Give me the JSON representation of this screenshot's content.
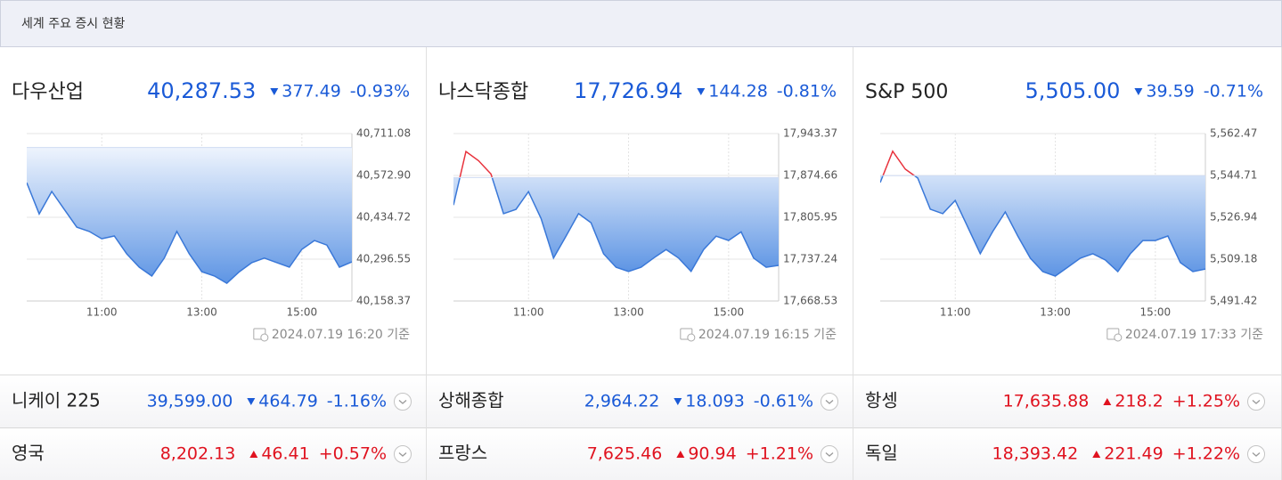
{
  "header": {
    "title": "세계 주요 증시 현황"
  },
  "colors": {
    "up": "#e0121f",
    "down": "#1a5ad7"
  },
  "panels": [
    {
      "name": "다우산업",
      "price": "40,287.53",
      "change": "377.49",
      "percent": "-0.93%",
      "direction": "down",
      "timestamp": "2024.07.19 16:20 기준"
    },
    {
      "name": "나스닥종합",
      "price": "17,726.94",
      "change": "144.28",
      "percent": "-0.81%",
      "direction": "down",
      "timestamp": "2024.07.19 16:15 기준"
    },
    {
      "name": "S&P 500",
      "price": "5,505.00",
      "change": "39.59",
      "percent": "-0.71%",
      "direction": "down",
      "timestamp": "2024.07.19 17:33 기준"
    }
  ],
  "chart_data": [
    {
      "type": "line",
      "color": "#3a78d8",
      "above_color": "#e8323c",
      "fill": true,
      "grid": true,
      "x": [
        9.5,
        9.75,
        10,
        10.25,
        10.5,
        10.75,
        11,
        11.25,
        11.5,
        11.75,
        12,
        12.25,
        12.5,
        12.75,
        13,
        13.25,
        13.5,
        13.75,
        14,
        14.25,
        14.5,
        14.75,
        15,
        15.25,
        15.5,
        15.75,
        16
      ],
      "values": [
        40549,
        40446,
        40520,
        40461,
        40402,
        40388,
        40364,
        40373,
        40314,
        40270,
        40241,
        40300,
        40388,
        40314,
        40255,
        40241,
        40217,
        40255,
        40285,
        40300,
        40285,
        40270,
        40329,
        40358,
        40343,
        40270,
        40287.53
      ],
      "reference": 40665.02,
      "xlim": [
        9.5,
        16
      ],
      "ylim": [
        40158.37,
        40711.08
      ],
      "yticks": [
        {
          "value": 40158.37,
          "label": "40,158.37"
        },
        {
          "value": 40296.55,
          "label": "40,296.55"
        },
        {
          "value": 40434.72,
          "label": "40,434.72"
        },
        {
          "value": 40572.9,
          "label": "40,572.90"
        },
        {
          "value": 40711.08,
          "label": "40,711.08"
        }
      ],
      "xticks": [
        {
          "value": 11,
          "label": "11:00"
        },
        {
          "value": 13,
          "label": "13:00"
        },
        {
          "value": 15,
          "label": "15:00"
        }
      ]
    },
    {
      "type": "line",
      "color": "#3a78d8",
      "above_color": "#e8323c",
      "fill": true,
      "grid": true,
      "x": [
        9.5,
        9.75,
        10,
        10.25,
        10.5,
        10.75,
        11,
        11.25,
        11.5,
        11.75,
        12,
        12.25,
        12.5,
        12.75,
        13,
        13.25,
        13.5,
        13.75,
        14,
        14.25,
        14.5,
        14.75,
        15,
        15.25,
        15.5,
        15.75,
        16
      ],
      "values": [
        17826,
        17914,
        17899,
        17877,
        17812,
        17819,
        17848,
        17804,
        17739,
        17775,
        17812,
        17797,
        17746,
        17724,
        17717,
        17724,
        17739,
        17753,
        17739,
        17717,
        17753,
        17775,
        17768,
        17782,
        17739,
        17724,
        17726.94
      ],
      "reference": 17871.22,
      "xlim": [
        9.5,
        16
      ],
      "ylim": [
        17668.53,
        17943.37
      ],
      "yticks": [
        {
          "value": 17668.53,
          "label": "17,668.53"
        },
        {
          "value": 17737.24,
          "label": "17,737.24"
        },
        {
          "value": 17805.95,
          "label": "17,805.95"
        },
        {
          "value": 17874.66,
          "label": "17,874.66"
        },
        {
          "value": 17943.37,
          "label": "17,943.37"
        }
      ],
      "xticks": [
        {
          "value": 11,
          "label": "11:00"
        },
        {
          "value": 13,
          "label": "13:00"
        },
        {
          "value": 15,
          "label": "15:00"
        }
      ]
    },
    {
      "type": "line",
      "color": "#3a78d8",
      "above_color": "#e8323c",
      "fill": true,
      "grid": true,
      "x": [
        9.5,
        9.75,
        10,
        10.25,
        10.5,
        10.75,
        11,
        11.25,
        11.5,
        11.75,
        12,
        12.25,
        12.5,
        12.75,
        13,
        13.25,
        13.5,
        13.75,
        14,
        14.25,
        14.5,
        14.75,
        15,
        15.25,
        15.5,
        15.75,
        16
      ],
      "values": [
        5541.7,
        5555.0,
        5547.4,
        5543.6,
        5530.4,
        5528.5,
        5534.1,
        5522.8,
        5511.5,
        5520.9,
        5529.2,
        5519.0,
        5509.6,
        5503.9,
        5502.0,
        5505.8,
        5509.6,
        5511.5,
        5508.8,
        5503.9,
        5511.5,
        5517.1,
        5517.1,
        5519.0,
        5507.7,
        5503.9,
        5505.0
      ],
      "reference": 5544.59,
      "xlim": [
        9.5,
        16
      ],
      "ylim": [
        5491.42,
        5562.47
      ],
      "yticks": [
        {
          "value": 5491.42,
          "label": "5,491.42"
        },
        {
          "value": 5509.18,
          "label": "5,509.18"
        },
        {
          "value": 5526.94,
          "label": "5,526.94"
        },
        {
          "value": 5544.71,
          "label": "5,544.71"
        },
        {
          "value": 5562.47,
          "label": "5,562.47"
        }
      ],
      "xticks": [
        {
          "value": 11,
          "label": "11:00"
        },
        {
          "value": 13,
          "label": "13:00"
        },
        {
          "value": 15,
          "label": "15:00"
        }
      ]
    }
  ],
  "rows": [
    [
      {
        "name": "니케이 225",
        "price": "39,599.00",
        "change": "464.79",
        "percent": "-1.16%",
        "direction": "down"
      },
      {
        "name": "상해종합",
        "price": "2,964.22",
        "change": "18.093",
        "percent": "-0.61%",
        "direction": "down"
      },
      {
        "name": "항셍",
        "price": "17,635.88",
        "change": "218.2",
        "percent": "+1.25%",
        "direction": "up"
      }
    ],
    [
      {
        "name": "영국",
        "price": "8,202.13",
        "change": "46.41",
        "percent": "+0.57%",
        "direction": "up"
      },
      {
        "name": "프랑스",
        "price": "7,625.46",
        "change": "90.94",
        "percent": "+1.21%",
        "direction": "up"
      },
      {
        "name": "독일",
        "price": "18,393.42",
        "change": "221.49",
        "percent": "+1.22%",
        "direction": "up"
      }
    ]
  ]
}
